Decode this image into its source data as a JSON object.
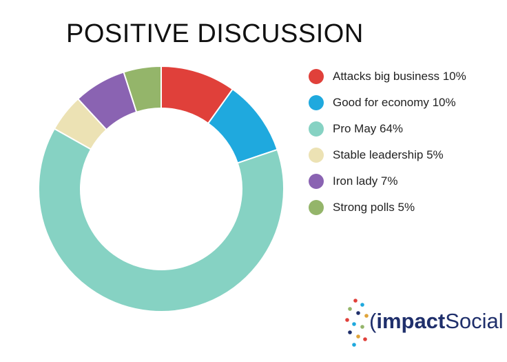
{
  "chart_data": {
    "type": "pie",
    "title": "POSITIVE DISCUSSION",
    "donut": true,
    "slices": [
      {
        "label": "Attacks big business 10%",
        "value": 10,
        "color": "#e0403a"
      },
      {
        "label": "Good for economy 10%",
        "value": 10,
        "color": "#1fa9de"
      },
      {
        "label": "Pro May 64%",
        "value": 64,
        "color": "#86d2c3"
      },
      {
        "label": "Stable leadership 5%",
        "value": 5,
        "color": "#ece2b4"
      },
      {
        "label": "Iron lady 7%",
        "value": 7,
        "color": "#8a63b2"
      },
      {
        "label": "Strong polls 5%",
        "value": 5,
        "color": "#94b56a"
      }
    ],
    "legend_position": "right"
  },
  "logo": {
    "brand_strong": "impact",
    "brand_light": "Social",
    "dot_colors": [
      "#e0403a",
      "#1fa9de",
      "#94b56a",
      "#1f2f6b",
      "#e0a43a"
    ]
  }
}
